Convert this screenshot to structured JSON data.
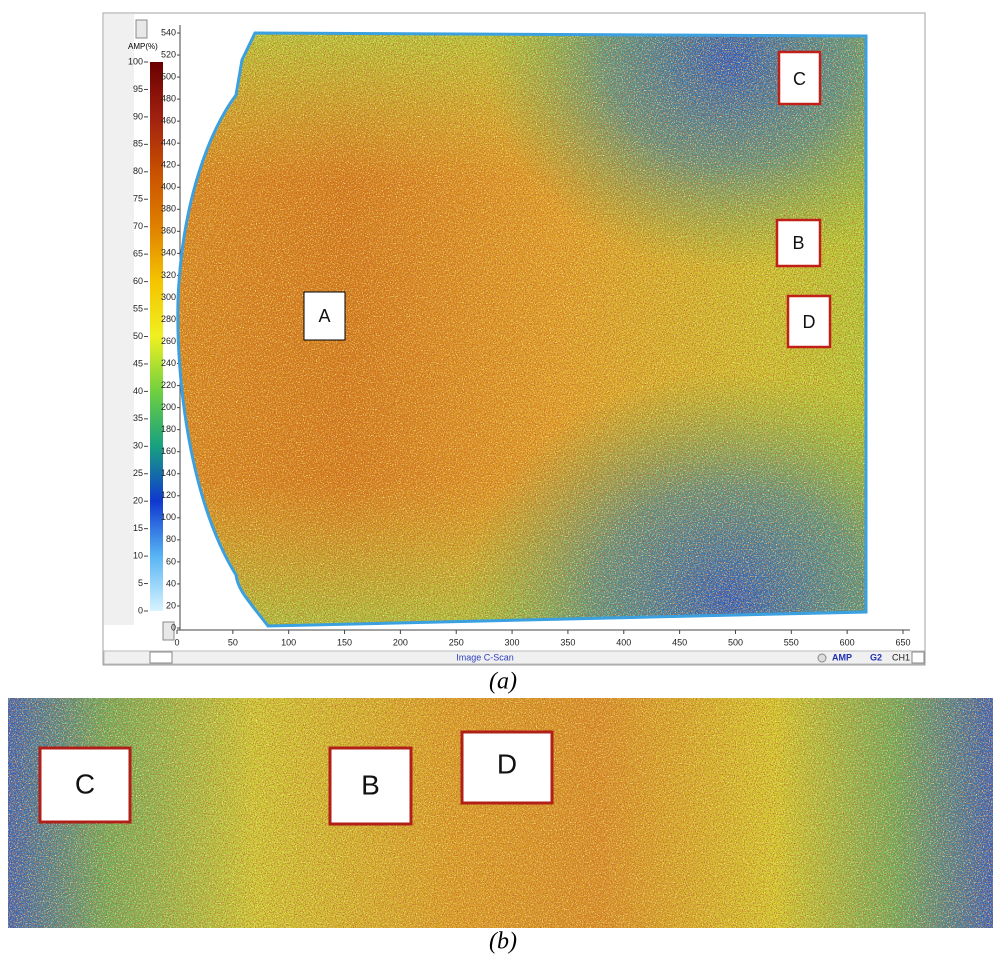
{
  "panel_a": {
    "colorbar": {
      "title": "AMP(%)",
      "ticks": [
        0,
        5,
        10,
        15,
        20,
        25,
        30,
        35,
        40,
        45,
        50,
        55,
        60,
        65,
        70,
        75,
        80,
        85,
        90,
        95,
        100
      ]
    },
    "y_ticks": [
      0,
      20,
      40,
      60,
      80,
      100,
      120,
      140,
      160,
      180,
      200,
      220,
      240,
      260,
      280,
      300,
      320,
      340,
      360,
      380,
      400,
      420,
      440,
      460,
      480,
      500,
      520,
      540
    ],
    "x_ticks": [
      0,
      50,
      100,
      150,
      200,
      250,
      300,
      350,
      400,
      450,
      500,
      550,
      600,
      650
    ],
    "markers": [
      "A",
      "C",
      "B",
      "D"
    ],
    "status_bar": {
      "title": "Image C-Scan",
      "mode": "AMP",
      "gate": "G2",
      "channel": "CH1"
    },
    "caption": "(a)"
  },
  "panel_b": {
    "markers": [
      "C",
      "B",
      "D"
    ],
    "caption": "(b)"
  }
}
